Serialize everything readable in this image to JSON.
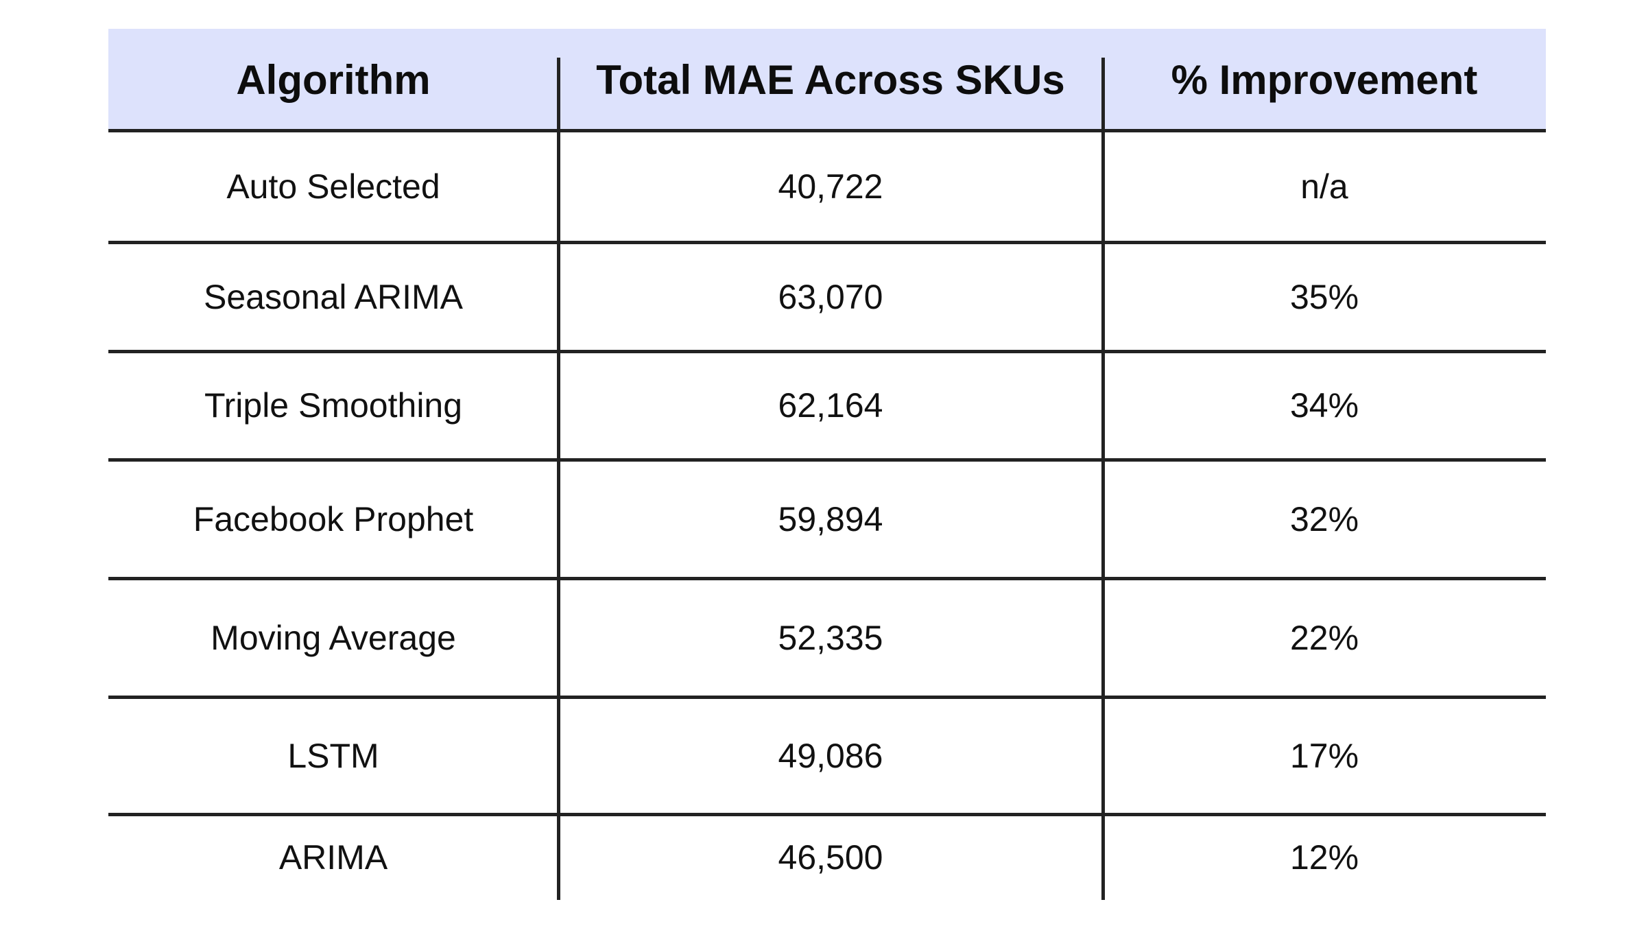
{
  "table": {
    "headers": [
      "Algorithm",
      "Total MAE Across SKUs",
      "% Improvement"
    ],
    "rows": [
      {
        "algorithm": "Auto Selected",
        "mae": "40,722",
        "improvement": "n/a"
      },
      {
        "algorithm": "Seasonal ARIMA",
        "mae": "63,070",
        "improvement": "35%"
      },
      {
        "algorithm": "Triple Smoothing",
        "mae": "62,164",
        "improvement": "34%"
      },
      {
        "algorithm": "Facebook Prophet",
        "mae": "59,894",
        "improvement": "32%"
      },
      {
        "algorithm": "Moving Average",
        "mae": "52,335",
        "improvement": "22%"
      },
      {
        "algorithm": "LSTM",
        "mae": "49,086",
        "improvement": "17%"
      },
      {
        "algorithm": "ARIMA",
        "mae": "46,500",
        "improvement": "12%"
      }
    ]
  },
  "colors": {
    "header_background": "#dde2fc",
    "rule_color": "#222222",
    "text_color": "#111111"
  }
}
